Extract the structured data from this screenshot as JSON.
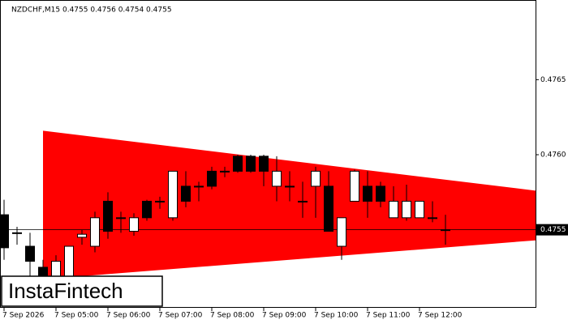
{
  "chart_data": {
    "type": "candlestick",
    "title": "NZDCHF,M15  0.4755 0.4756 0.4754 0.4755",
    "series": [
      {
        "color": "#000000",
        "open": [
          0.4756,
          0.47548,
          0.47539,
          0.47525,
          0.47517,
          0.47517,
          0.47545,
          0.47539,
          0.47569,
          0.47558,
          0.47549,
          0.47569,
          0.47569,
          0.47558,
          0.47579,
          0.47579,
          0.47589,
          0.47589,
          0.47599,
          0.47599,
          0.47599,
          0.47579,
          0.47579,
          0.47569,
          0.47579,
          0.47579,
          0.47539,
          0.47569,
          0.47579,
          0.47579,
          0.47558,
          0.47558,
          0.47558,
          0.47558,
          0.4755
        ],
        "high": [
          0.4757,
          0.47552,
          0.47548,
          0.4753,
          0.47533,
          0.47539,
          0.4755,
          0.47562,
          0.47575,
          0.47562,
          0.47561,
          0.4757,
          0.47572,
          0.47589,
          0.47589,
          0.47582,
          0.47592,
          0.47592,
          0.476,
          0.476,
          0.476,
          0.47599,
          0.47589,
          0.47582,
          0.47592,
          0.47589,
          0.47558,
          0.4759,
          0.47589,
          0.47582,
          0.47579,
          0.4758,
          0.47569,
          0.47569,
          0.4756
        ],
        "low": [
          0.4753,
          0.4754,
          0.47519,
          0.47505,
          0.475,
          0.4751,
          0.4754,
          0.47535,
          0.47544,
          0.47548,
          0.47546,
          0.47556,
          0.47564,
          0.47556,
          0.47565,
          0.47569,
          0.47577,
          0.47585,
          0.47588,
          0.47588,
          0.47579,
          0.47569,
          0.47569,
          0.47558,
          0.47558,
          0.47549,
          0.4753,
          0.47569,
          0.47558,
          0.47565,
          0.47558,
          0.47556,
          0.47558,
          0.47555,
          0.4754
        ],
        "close": [
          0.47538,
          0.47548,
          0.47529,
          0.47518,
          0.47529,
          0.47539,
          0.47547,
          0.47558,
          0.47549,
          0.47558,
          0.47558,
          0.47558,
          0.47569,
          0.47589,
          0.47569,
          0.47579,
          0.47579,
          0.47589,
          0.47589,
          0.47589,
          0.47589,
          0.47589,
          0.47579,
          0.47569,
          0.47589,
          0.47549,
          0.47558,
          0.47589,
          0.47569,
          0.47569,
          0.47569,
          0.47569,
          0.47569,
          0.47558,
          0.4755
        ]
      }
    ],
    "pattern": {
      "color": "#ff0000",
      "start": 3,
      "end": 41,
      "upper": [
        0.47616,
        0.47576
      ],
      "lower": [
        0.47517,
        0.47543
      ]
    },
    "current_price": 0.4755,
    "ylim": [
      0.47498,
      0.47702
    ],
    "yticks": [
      0.4765,
      {
        "value": 0.476,
        "label": "0.4760"
      }
    ],
    "xticks": [
      {
        "value": 0,
        "label": "7 Sep 2026"
      },
      {
        "value": 4,
        "label": "7 Sep 05:00"
      },
      {
        "value": 8,
        "label": "7 Sep 06:00"
      },
      {
        "value": 12,
        "label": "7 Sep 07:00"
      },
      {
        "value": 16,
        "label": "7 Sep 08:00"
      },
      {
        "value": 20,
        "label": "7 Sep 09:00"
      },
      {
        "value": 24,
        "label": "7 Sep 10:00"
      },
      {
        "value": 28,
        "label": "7 Sep 11:00"
      },
      {
        "value": 32,
        "label": "7 Sep 12:00"
      }
    ],
    "logo": "InstaFintech"
  }
}
